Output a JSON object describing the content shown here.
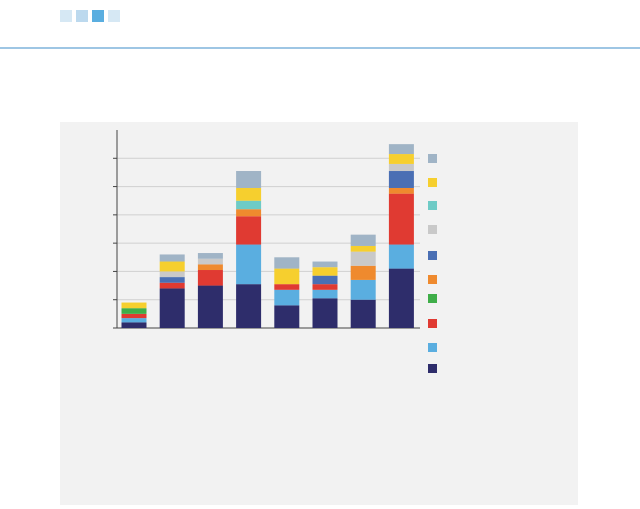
{
  "chart_data": {
    "type": "stacked_bar",
    "categories": [
      null,
      null,
      null,
      null,
      null,
      null,
      null,
      null
    ],
    "series": [
      {
        "color": "#2e2d6b",
        "values": [
          2,
          14,
          15,
          15.5,
          8,
          10.5,
          10,
          21
        ]
      },
      {
        "color": "#5aaee0",
        "values": [
          1.5,
          0,
          0,
          14,
          5.5,
          3,
          7,
          8.5
        ]
      },
      {
        "color": "#e03a32",
        "values": [
          1.5,
          2,
          5.5,
          10,
          2,
          2,
          0,
          18
        ]
      },
      {
        "color": "#3fae49",
        "values": [
          2,
          0,
          0,
          0,
          0,
          0,
          0,
          0
        ]
      },
      {
        "color": "#ef8a2e",
        "values": [
          0,
          0,
          2,
          2.5,
          0,
          0,
          5,
          2
        ]
      },
      {
        "color": "#4a6fb4",
        "values": [
          0,
          2,
          0,
          0,
          0,
          3,
          0,
          6
        ]
      },
      {
        "color": "#c9c9c9",
        "values": [
          0,
          2,
          2,
          0,
          0,
          0,
          5,
          2.5
        ]
      },
      {
        "color": "#6ecbc6",
        "values": [
          0,
          0,
          0,
          3,
          0,
          0,
          0,
          0
        ]
      },
      {
        "color": "#f6cf2e",
        "values": [
          2,
          3.5,
          0,
          4.5,
          5.5,
          3,
          2,
          3.5
        ]
      },
      {
        "color": "#a0b4c6",
        "values": [
          0,
          2.5,
          2,
          6,
          4,
          2,
          4,
          3.5
        ]
      }
    ],
    "ylim": [
      0,
      70
    ],
    "yticks": [
      0,
      10,
      20,
      30,
      40,
      50,
      60
    ],
    "grid": true
  }
}
